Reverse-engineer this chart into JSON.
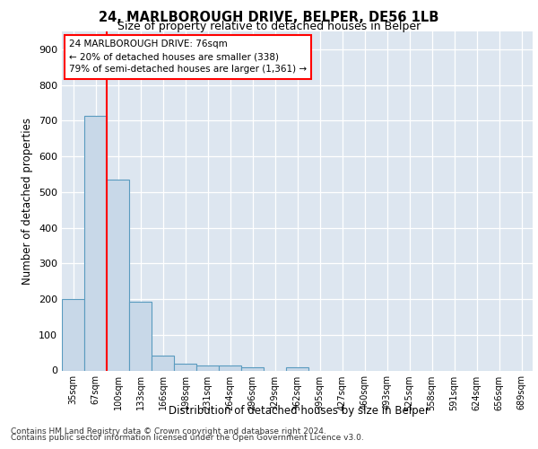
{
  "title1": "24, MARLBOROUGH DRIVE, BELPER, DE56 1LB",
  "title2": "Size of property relative to detached houses in Belper",
  "xlabel": "Distribution of detached houses by size in Belper",
  "ylabel": "Number of detached properties",
  "categories": [
    "35sqm",
    "67sqm",
    "100sqm",
    "133sqm",
    "166sqm",
    "198sqm",
    "231sqm",
    "264sqm",
    "296sqm",
    "329sqm",
    "362sqm",
    "395sqm",
    "427sqm",
    "460sqm",
    "493sqm",
    "525sqm",
    "558sqm",
    "591sqm",
    "624sqm",
    "656sqm",
    "689sqm"
  ],
  "values": [
    200,
    714,
    536,
    193,
    42,
    20,
    15,
    13,
    10,
    0,
    10,
    0,
    0,
    0,
    0,
    0,
    0,
    0,
    0,
    0,
    0
  ],
  "bar_color": "#c8d8e8",
  "bar_edge_color": "#5a9bbf",
  "ylim": [
    0,
    950
  ],
  "yticks": [
    0,
    100,
    200,
    300,
    400,
    500,
    600,
    700,
    800,
    900
  ],
  "vline_x": 1.5,
  "annotation_text1": "24 MARLBOROUGH DRIVE: 76sqm",
  "annotation_text2": "← 20% of detached houses are smaller (338)",
  "annotation_text3": "79% of semi-detached houses are larger (1,361) →",
  "vline_color": "red",
  "footer1": "Contains HM Land Registry data © Crown copyright and database right 2024.",
  "footer2": "Contains public sector information licensed under the Open Government Licence v3.0.",
  "bg_color": "#dde6f0",
  "grid_color": "white",
  "fig_bg": "#ffffff"
}
